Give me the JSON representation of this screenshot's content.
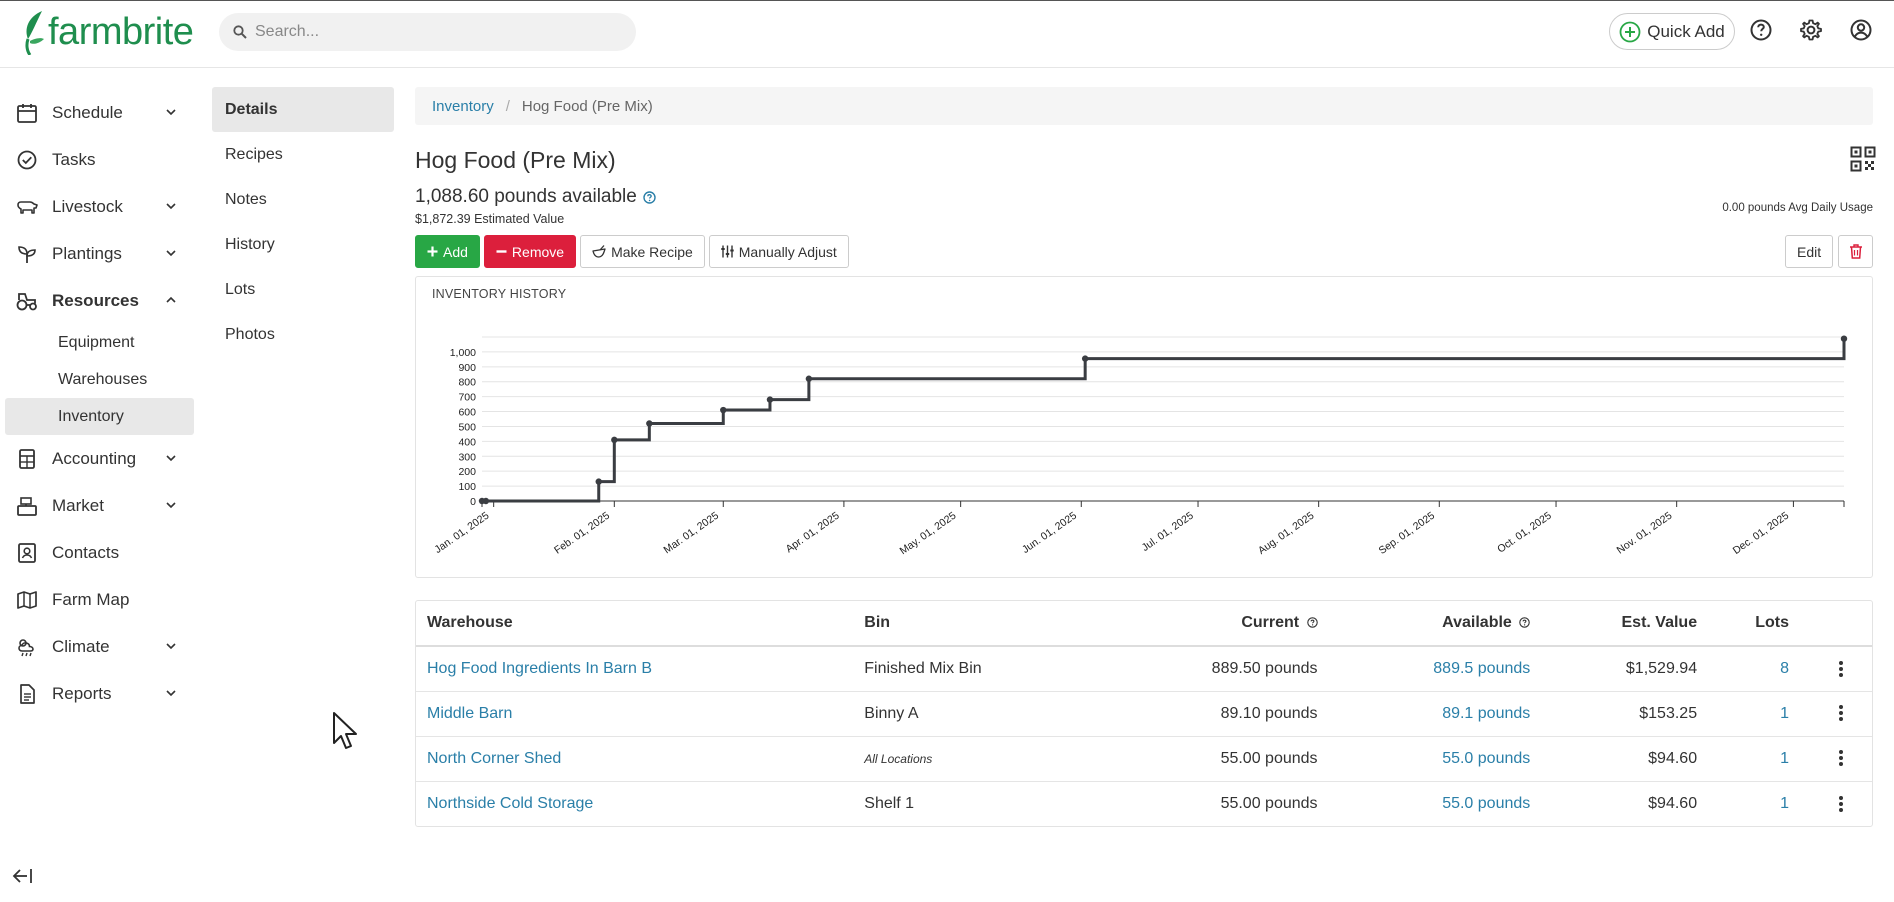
{
  "brand": {
    "name": "farmbrite",
    "color": "#1f8e4e"
  },
  "search": {
    "placeholder": "Search..."
  },
  "header": {
    "quick_add_label": "Quick Add",
    "icons": [
      "help-icon",
      "gear-icon",
      "account-icon"
    ]
  },
  "sidebar": {
    "items": [
      {
        "label": "Schedule",
        "icon": "calendar-icon",
        "has_chevron": true
      },
      {
        "label": "Tasks",
        "icon": "check-circle-icon",
        "has_chevron": false
      },
      {
        "label": "Livestock",
        "icon": "livestock-icon",
        "has_chevron": true
      },
      {
        "label": "Plantings",
        "icon": "sprout-icon",
        "has_chevron": true
      },
      {
        "label": "Resources",
        "icon": "tractor-icon",
        "has_chevron": true,
        "expanded": true
      },
      {
        "label": "Accounting",
        "icon": "calculator-icon",
        "has_chevron": true
      },
      {
        "label": "Market",
        "icon": "register-icon",
        "has_chevron": true
      },
      {
        "label": "Contacts",
        "icon": "contacts-icon",
        "has_chevron": false
      },
      {
        "label": "Farm Map",
        "icon": "map-icon",
        "has_chevron": false
      },
      {
        "label": "Climate",
        "icon": "weather-icon",
        "has_chevron": true
      },
      {
        "label": "Reports",
        "icon": "report-icon",
        "has_chevron": true
      }
    ],
    "resources_sub": [
      "Equipment",
      "Warehouses",
      "Inventory"
    ],
    "active_sub": "Inventory"
  },
  "subnav": {
    "items": [
      "Details",
      "Recipes",
      "Notes",
      "History",
      "Lots",
      "Photos"
    ],
    "active": "Details"
  },
  "breadcrumb": {
    "root": "Inventory",
    "current": "Hog Food (Pre Mix)"
  },
  "item": {
    "title": "Hog Food (Pre Mix)",
    "available_text": "1,088.60 pounds available",
    "estimated_value_text": "$1,872.39 Estimated Value",
    "avg_daily_usage_text": "0.00 pounds Avg Daily Usage"
  },
  "actions": {
    "add_label": "Add",
    "remove_label": "Remove",
    "make_recipe_label": "Make Recipe",
    "manually_adjust_label": "Manually Adjust",
    "edit_label": "Edit"
  },
  "colors": {
    "add": "#28a745",
    "remove": "#dc1f3c",
    "link": "#2a7fa8",
    "line": "#3a3d42"
  },
  "chart_data": {
    "type": "line",
    "title": "INVENTORY HISTORY",
    "step": "after",
    "x_ticks": [
      "Jan. 01, 2025",
      "Feb. 01, 2025",
      "Mar. 01, 2025",
      "Apr. 01, 2025",
      "May. 01, 2025",
      "Jun. 01, 2025",
      "Jul. 01, 2025",
      "Aug. 01, 2025",
      "Sep. 01, 2025",
      "Oct. 01, 2025",
      "Nov. 01, 2025",
      "Dec. 01, 2025"
    ],
    "y_ticks": [
      0,
      100,
      200,
      300,
      400,
      500,
      600,
      700,
      800,
      900,
      1000
    ],
    "y_tick_labels": [
      "0",
      "100",
      "200",
      "300",
      "400",
      "500",
      "600",
      "700",
      "800",
      "900",
      "1,000"
    ],
    "ylim": [
      0,
      1100
    ],
    "xlim": [
      "2024-12-29",
      "2025-12-14"
    ],
    "points": [
      {
        "x": "2024-12-29",
        "y": 0
      },
      {
        "x": "2024-12-30",
        "y": 0
      },
      {
        "x": "2025-01-28",
        "y": 130
      },
      {
        "x": "2025-02-01",
        "y": 410
      },
      {
        "x": "2025-02-10",
        "y": 520
      },
      {
        "x": "2025-03-01",
        "y": 610
      },
      {
        "x": "2025-03-13",
        "y": 680
      },
      {
        "x": "2025-03-23",
        "y": 820
      },
      {
        "x": "2025-06-02",
        "y": 955
      },
      {
        "x": "2025-12-14",
        "y": 1088.6
      }
    ]
  },
  "table": {
    "headers": {
      "warehouse": "Warehouse",
      "bin": "Bin",
      "current": "Current",
      "available": "Available",
      "est_value": "Est. Value",
      "lots": "Lots"
    },
    "rows": [
      {
        "warehouse": "Hog Food Ingredients In Barn B",
        "bin": "Finished Mix Bin",
        "bin_italic": false,
        "current": "889.50 pounds",
        "available": "889.5 pounds",
        "est_value": "$1,529.94",
        "lots": "8"
      },
      {
        "warehouse": "Middle Barn",
        "bin": "Binny A",
        "bin_italic": false,
        "current": "89.10 pounds",
        "available": "89.1 pounds",
        "est_value": "$153.25",
        "lots": "1"
      },
      {
        "warehouse": "North Corner Shed",
        "bin": "All Locations",
        "bin_italic": true,
        "current": "55.00 pounds",
        "available": "55.0 pounds",
        "est_value": "$94.60",
        "lots": "1"
      },
      {
        "warehouse": "Northside Cold Storage",
        "bin": "Shelf 1",
        "bin_italic": false,
        "current": "55.00 pounds",
        "available": "55.0 pounds",
        "est_value": "$94.60",
        "lots": "1"
      }
    ]
  }
}
